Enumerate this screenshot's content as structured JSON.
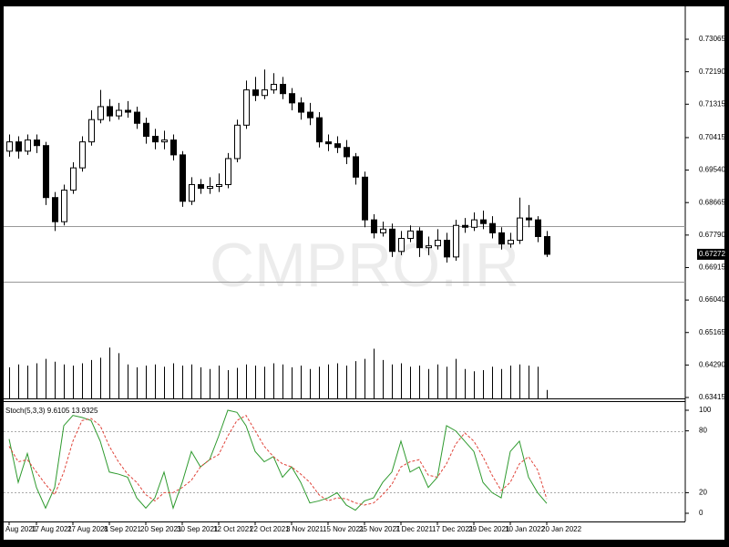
{
  "chart_data": [
    {
      "type": "candlestick",
      "open": [
        0.7005,
        0.703,
        0.7005,
        0.7035,
        0.702,
        0.688,
        0.6815,
        0.69,
        0.696,
        0.703,
        0.709,
        0.7125,
        0.71,
        0.7115,
        0.711,
        0.708,
        0.7045,
        0.703,
        0.7035,
        0.6995,
        0.687,
        0.6915,
        0.6905,
        0.691,
        0.6915,
        0.6985,
        0.7075,
        0.717,
        0.7155,
        0.717,
        0.7185,
        0.716,
        0.7135,
        0.711,
        0.7095,
        0.703,
        0.7025,
        0.7015,
        0.699,
        0.6935,
        0.682,
        0.6785,
        0.6795,
        0.6735,
        0.677,
        0.679,
        0.6745,
        0.675,
        0.6765,
        0.672,
        0.6805,
        0.68,
        0.682,
        0.681,
        0.6785,
        0.6755,
        0.6765,
        0.6825,
        0.682,
        0.6775
      ],
      "high": [
        0.705,
        0.7045,
        0.705,
        0.705,
        0.703,
        0.6895,
        0.6915,
        0.6975,
        0.7045,
        0.7115,
        0.717,
        0.7145,
        0.7135,
        0.714,
        0.7125,
        0.7095,
        0.7065,
        0.706,
        0.705,
        0.7005,
        0.6935,
        0.693,
        0.6935,
        0.6945,
        0.7,
        0.709,
        0.7195,
        0.7205,
        0.7225,
        0.7215,
        0.7205,
        0.7175,
        0.715,
        0.7135,
        0.711,
        0.705,
        0.7045,
        0.7035,
        0.7,
        0.695,
        0.6835,
        0.6815,
        0.681,
        0.679,
        0.6805,
        0.68,
        0.6775,
        0.6795,
        0.6785,
        0.682,
        0.6825,
        0.684,
        0.6845,
        0.683,
        0.68,
        0.6785,
        0.688,
        0.686,
        0.683,
        0.679
      ],
      "low": [
        0.699,
        0.6985,
        0.6995,
        0.7,
        0.686,
        0.679,
        0.6805,
        0.689,
        0.695,
        0.702,
        0.708,
        0.7085,
        0.709,
        0.7095,
        0.7065,
        0.7025,
        0.701,
        0.701,
        0.698,
        0.6855,
        0.686,
        0.689,
        0.689,
        0.6895,
        0.6905,
        0.6975,
        0.7065,
        0.714,
        0.7145,
        0.716,
        0.7145,
        0.7115,
        0.709,
        0.7075,
        0.7015,
        0.7005,
        0.7,
        0.697,
        0.6915,
        0.68,
        0.677,
        0.6775,
        0.672,
        0.6725,
        0.676,
        0.672,
        0.6725,
        0.674,
        0.6705,
        0.671,
        0.6785,
        0.679,
        0.6795,
        0.677,
        0.674,
        0.6745,
        0.6755,
        0.68,
        0.676,
        0.672
      ],
      "close": [
        0.703,
        0.7005,
        0.7035,
        0.702,
        0.688,
        0.6815,
        0.69,
        0.696,
        0.703,
        0.709,
        0.7125,
        0.71,
        0.7115,
        0.711,
        0.708,
        0.7045,
        0.703,
        0.7035,
        0.6995,
        0.687,
        0.6915,
        0.6905,
        0.691,
        0.6915,
        0.6985,
        0.7075,
        0.717,
        0.7155,
        0.717,
        0.7185,
        0.716,
        0.7135,
        0.711,
        0.7095,
        0.703,
        0.7025,
        0.7015,
        0.699,
        0.6935,
        0.682,
        0.6785,
        0.6795,
        0.6735,
        0.677,
        0.679,
        0.6745,
        0.675,
        0.6765,
        0.672,
        0.6805,
        0.68,
        0.682,
        0.681,
        0.6785,
        0.6755,
        0.6765,
        0.6825,
        0.682,
        0.6775,
        0.67272
      ],
      "up_color": "#ffffff",
      "down_color": "#000000",
      "ylim": [
        0.63415,
        0.7394
      ],
      "yticks": [
        0.73065,
        {
          "value": 0.7219,
          "label": "0.72190"
        },
        0.71315,
        0.70415,
        {
          "value": 0.6954,
          "label": "0.69540"
        },
        0.68665,
        {
          "value": 0.6779,
          "label": "0.67790"
        },
        0.66915,
        {
          "value": 0.6604,
          "label": "0.66040"
        },
        0.65165,
        {
          "value": 0.6429,
          "label": "0.64290"
        },
        0.63415
      ],
      "levels": [
        0.6802,
        0.66525
      ],
      "last_price": 0.67272,
      "watermark": "CMPRO.IR",
      "xticks": [
        {
          "value": 0,
          "label": "Aug 2021"
        },
        {
          "value": 3,
          "label": "17 Aug 2021"
        },
        {
          "value": 7,
          "label": "27 Aug 2021"
        },
        {
          "value": 11,
          "label": "8 Sep 2021"
        },
        {
          "value": 15,
          "label": "20 Sep 2021"
        },
        {
          "value": 19,
          "label": "30 Sep 2021"
        },
        {
          "value": 23,
          "label": "12 Oct 2021"
        },
        {
          "value": 27,
          "label": "22 Oct 2021"
        },
        {
          "value": 31,
          "label": "3 Nov 2021"
        },
        {
          "value": 35,
          "label": "15 Nov 2021"
        },
        {
          "value": 39,
          "label": "25 Nov 2021"
        },
        {
          "value": 43,
          "label": "7 Dec 2021"
        },
        {
          "value": 47,
          "label": "17 Dec 2021"
        },
        {
          "value": 51,
          "label": "29 Dec 2021"
        },
        {
          "value": 55,
          "label": "10 Jan 2022"
        },
        {
          "value": 59,
          "label": "20 Jan 2022"
        }
      ]
    },
    {
      "type": "bar",
      "color": "#000000",
      "values": [
        55,
        60,
        58,
        62,
        70,
        65,
        60,
        58,
        62,
        68,
        72,
        90,
        80,
        60,
        55,
        58,
        60,
        56,
        62,
        58,
        60,
        55,
        52,
        58,
        50,
        54,
        60,
        58,
        56,
        62,
        60,
        55,
        58,
        52,
        56,
        60,
        62,
        58,
        66,
        70,
        88,
        68,
        60,
        62,
        56,
        58,
        52,
        60,
        56,
        70,
        52,
        48,
        50,
        56,
        52,
        58,
        60,
        58,
        56,
        15
      ]
    },
    {
      "type": "line",
      "title": "Stoch(5,3,3) 9.6105 13.9325",
      "ylim": [
        0,
        100
      ],
      "yticks": [
        100,
        80,
        20,
        0
      ],
      "levels": [
        80,
        20
      ],
      "series": [
        {
          "color": "#2e9a2e",
          "dashed": false,
          "values": [
            72,
            30,
            58,
            25,
            5,
            25,
            85,
            95,
            93,
            90,
            70,
            40,
            38,
            35,
            15,
            5,
            15,
            40,
            5,
            30,
            60,
            45,
            52,
            75,
            100,
            98,
            85,
            60,
            50,
            55,
            35,
            45,
            30,
            10,
            12,
            15,
            20,
            8,
            3,
            12,
            15,
            30,
            40,
            70,
            40,
            45,
            25,
            35,
            85,
            80,
            70,
            60,
            30,
            20,
            15,
            60,
            70,
            35,
            20,
            9.6105
          ]
        },
        {
          "color": "#e0443a",
          "dashed": true,
          "values": [
            65,
            50,
            52,
            40,
            28,
            18,
            40,
            70,
            90,
            92,
            85,
            65,
            50,
            38,
            30,
            18,
            12,
            20,
            20,
            25,
            32,
            45,
            52,
            57,
            75,
            90,
            95,
            80,
            65,
            55,
            48,
            45,
            38,
            30,
            18,
            12,
            15,
            14,
            10,
            8,
            10,
            18,
            28,
            45,
            50,
            52,
            37,
            35,
            48,
            67,
            78,
            70,
            55,
            37,
            22,
            30,
            48,
            55,
            42,
            13.9325
          ]
        }
      ]
    }
  ]
}
